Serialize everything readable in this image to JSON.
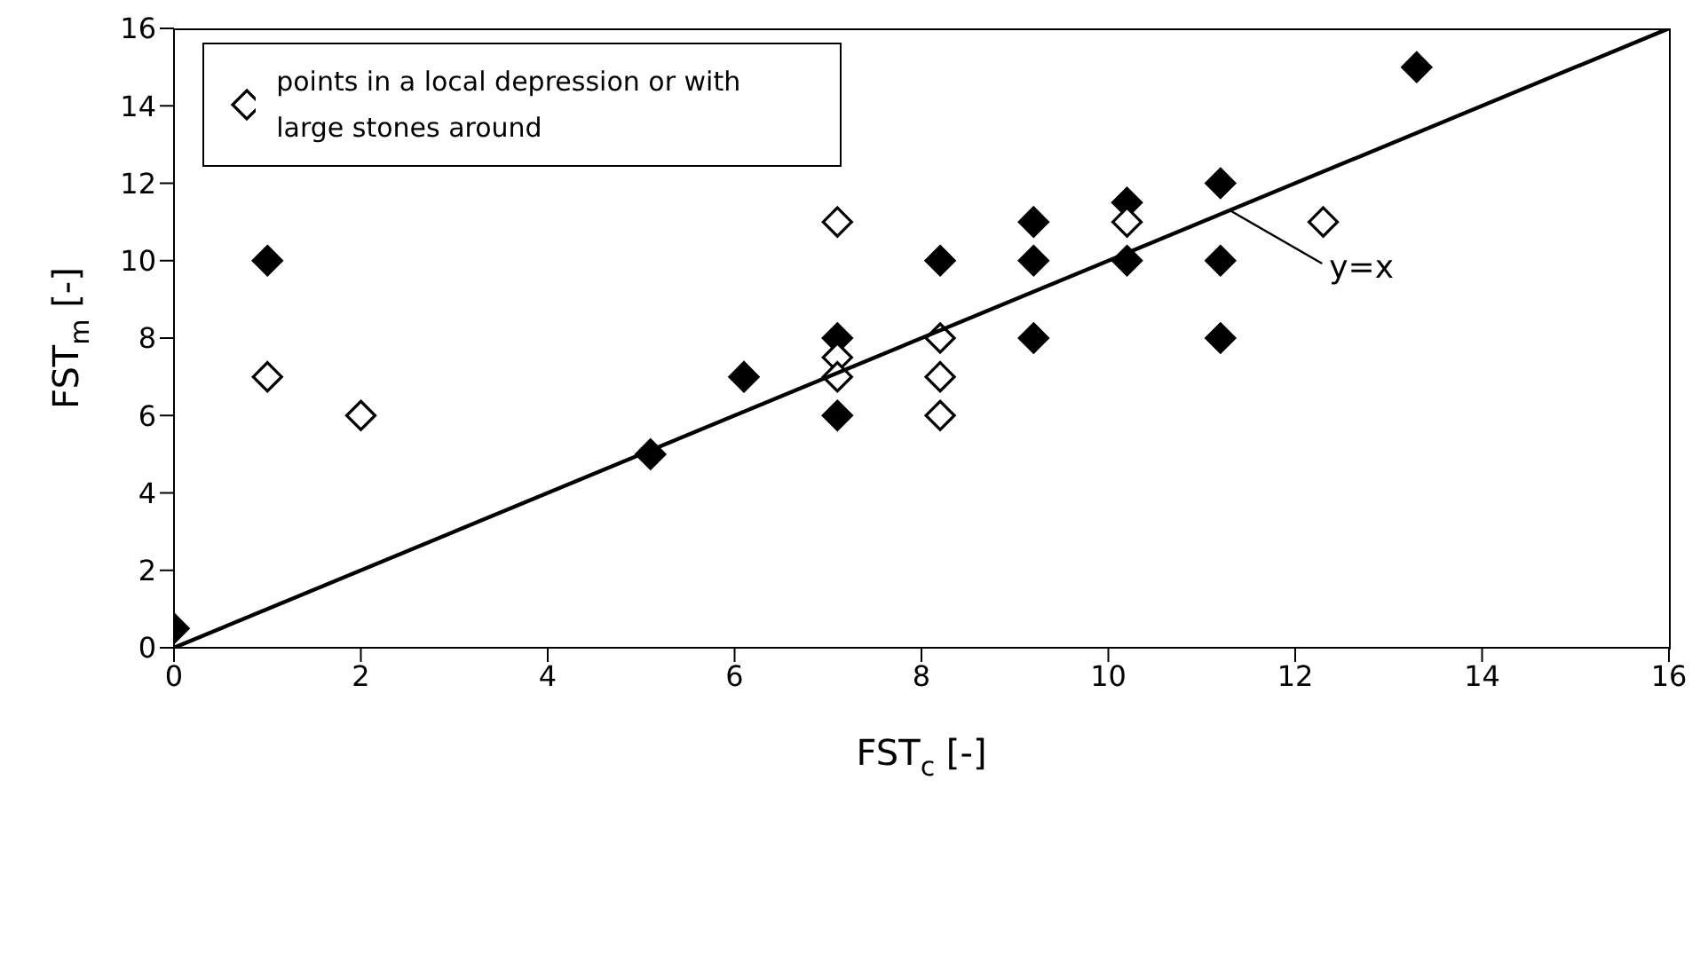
{
  "chart_data": {
    "type": "scatter",
    "xlabel": "FST$_{c}$ [-]",
    "ylabel": "FST$_{m}$ [-]",
    "xlim": [
      0,
      16
    ],
    "xticks": [
      0,
      2,
      4,
      6,
      8,
      10,
      12,
      14,
      16
    ],
    "ylim": [
      0,
      16
    ],
    "yticks": [
      0,
      2,
      4,
      6,
      8,
      10,
      12,
      14,
      16
    ],
    "legend": "top left",
    "marker": "diamond",
    "series": [
      {
        "color": "#000000",
        "x": [
          0,
          1,
          5.1,
          6.1,
          7.1,
          7.1,
          8.2,
          9.2,
          9.2,
          9.2,
          10.2,
          10.2,
          11.2,
          11.2,
          11.2,
          13.3
        ],
        "values": [
          0.5,
          10,
          5,
          7,
          8,
          6,
          10,
          11,
          10,
          8,
          11.5,
          10,
          12,
          10,
          8,
          15
        ]
      },
      {
        "name": "points in a local depression or with large stones around",
        "color": "#ffffff",
        "x": [
          1,
          2,
          7.1,
          7.1,
          7.1,
          8.2,
          8.2,
          8.2,
          10.2,
          12.3
        ],
        "values": [
          7,
          6,
          11,
          7.5,
          7,
          8,
          7,
          6,
          11,
          11
        ]
      },
      {
        "type": "line",
        "color": "#000000",
        "marker": "none",
        "x": [
          0,
          16
        ],
        "values": [
          0,
          16
        ]
      }
    ],
    "annotations": [
      {
        "text": "y=x",
        "x": 11.3,
        "y": 11.3
      }
    ]
  }
}
